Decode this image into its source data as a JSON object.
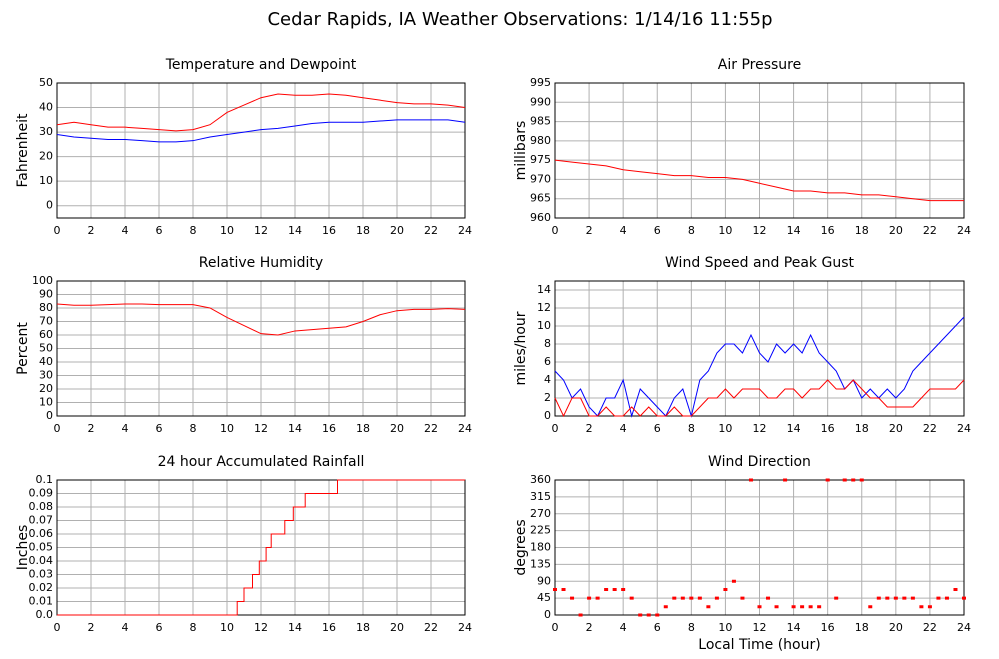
{
  "title": "Cedar Rapids, IA Weather Observations: 1/14/16 11:55p",
  "chart_data": [
    {
      "type": "line",
      "title": "Temperature and Dewpoint",
      "ylabel": "Fahrenheit",
      "x": [
        0,
        1,
        2,
        3,
        4,
        5,
        6,
        7,
        8,
        9,
        10,
        11,
        12,
        13,
        14,
        15,
        16,
        17,
        18,
        19,
        20,
        21,
        22,
        23,
        24
      ],
      "series": [
        {
          "color": "#ff0000",
          "values": [
            33,
            34,
            33,
            32,
            32,
            31.5,
            31,
            30.5,
            31,
            33,
            38,
            41,
            44,
            45.5,
            45,
            45,
            45.5,
            45,
            44,
            43,
            42,
            41.5,
            41.5,
            41,
            40
          ]
        },
        {
          "color": "#0000ff",
          "values": [
            29,
            28,
            27.5,
            27,
            27,
            26.5,
            26,
            26,
            26.5,
            28,
            29,
            30,
            31,
            31.5,
            32.5,
            33.5,
            34,
            34,
            34,
            34.5,
            35,
            35,
            35,
            35,
            34
          ]
        }
      ],
      "xlim": [
        0,
        24
      ],
      "xticks": [
        0,
        2,
        4,
        6,
        8,
        10,
        12,
        14,
        16,
        18,
        20,
        22,
        24
      ],
      "ylim": [
        -5,
        50
      ],
      "yticks": [
        0,
        10,
        20,
        30,
        40,
        50
      ],
      "grid": true
    },
    {
      "type": "line",
      "title": "Air Pressure",
      "ylabel": "millibars",
      "x": [
        0,
        1,
        2,
        3,
        4,
        5,
        6,
        7,
        8,
        9,
        10,
        11,
        12,
        13,
        14,
        15,
        16,
        17,
        18,
        19,
        20,
        21,
        22,
        23,
        24
      ],
      "series": [
        {
          "color": "#ff0000",
          "values": [
            975,
            974.5,
            974,
            973.5,
            972.5,
            972,
            971.5,
            971,
            971,
            970.5,
            970.5,
            970,
            969,
            968,
            967,
            967,
            966.5,
            966.5,
            966,
            966,
            965.5,
            965,
            964.5,
            964.5,
            964.5
          ]
        }
      ],
      "xlim": [
        0,
        24
      ],
      "xticks": [
        0,
        2,
        4,
        6,
        8,
        10,
        12,
        14,
        16,
        18,
        20,
        22,
        24
      ],
      "ylim": [
        960,
        995
      ],
      "yticks": [
        960,
        965,
        970,
        975,
        980,
        985,
        990,
        995
      ],
      "grid": true
    },
    {
      "type": "line",
      "title": "Relative Humidity",
      "ylabel": "Percent",
      "x": [
        0,
        1,
        2,
        3,
        4,
        5,
        6,
        7,
        8,
        9,
        10,
        11,
        12,
        13,
        14,
        15,
        16,
        17,
        18,
        19,
        20,
        21,
        22,
        23,
        24
      ],
      "series": [
        {
          "color": "#ff0000",
          "values": [
            83,
            82,
            82,
            82.5,
            83,
            83,
            82.5,
            82.5,
            82.5,
            80,
            73,
            67,
            61,
            60,
            63,
            64,
            65,
            66,
            70,
            75,
            78,
            79,
            79,
            79.5,
            79
          ]
        }
      ],
      "xlim": [
        0,
        24
      ],
      "xticks": [
        0,
        2,
        4,
        6,
        8,
        10,
        12,
        14,
        16,
        18,
        20,
        22,
        24
      ],
      "ylim": [
        0,
        100
      ],
      "yticks": [
        0,
        10,
        20,
        30,
        40,
        50,
        60,
        70,
        80,
        90,
        100
      ],
      "grid": true
    },
    {
      "type": "line",
      "title": "Wind Speed and Peak Gust",
      "ylabel": "miles/hour",
      "x": [
        0,
        0.5,
        1,
        1.5,
        2,
        2.5,
        3,
        3.5,
        4,
        4.5,
        5,
        5.5,
        6,
        6.5,
        7,
        7.5,
        8,
        8.5,
        9,
        9.5,
        10,
        10.5,
        11,
        11.5,
        12,
        12.5,
        13,
        13.5,
        14,
        14.5,
        15,
        15.5,
        16,
        16.5,
        17,
        17.5,
        18,
        18.5,
        19,
        19.5,
        20,
        20.5,
        21,
        21.5,
        22,
        22.5,
        23,
        23.5,
        24
      ],
      "series": [
        {
          "color": "#0000ff",
          "values": [
            5,
            4,
            2,
            3,
            1,
            0,
            2,
            2,
            4,
            0,
            3,
            2,
            1,
            0,
            2,
            3,
            0,
            4,
            5,
            7,
            8,
            8,
            7,
            9,
            7,
            6,
            8,
            7,
            8,
            7,
            9,
            7,
            6,
            5,
            3,
            4,
            2,
            3,
            2,
            3,
            2,
            3,
            5,
            6,
            7,
            8,
            9,
            10,
            11
          ]
        },
        {
          "color": "#ff0000",
          "values": [
            2,
            0,
            2,
            2,
            0,
            0,
            1,
            0,
            0,
            1,
            0,
            1,
            0,
            0,
            1,
            0,
            0,
            1,
            2,
            2,
            3,
            2,
            3,
            3,
            3,
            2,
            2,
            3,
            3,
            2,
            3,
            3,
            4,
            3,
            3,
            4,
            3,
            2,
            2,
            1,
            1,
            1,
            1,
            2,
            3,
            3,
            3,
            3,
            4
          ]
        }
      ],
      "xlim": [
        0,
        24
      ],
      "xticks": [
        0,
        2,
        4,
        6,
        8,
        10,
        12,
        14,
        16,
        18,
        20,
        22,
        24
      ],
      "ylim": [
        0,
        15
      ],
      "yticks": [
        0,
        2,
        4,
        6,
        8,
        10,
        12,
        14
      ],
      "grid": true
    },
    {
      "type": "step",
      "title": "24 hour Accumulated Rainfall",
      "ylabel": "Inches",
      "x": [
        0,
        10.6,
        11.0,
        11.5,
        11.9,
        12.3,
        12.6,
        13.4,
        13.9,
        14.6,
        16.5,
        24
      ],
      "series": [
        {
          "color": "#ff0000",
          "values": [
            0,
            0.01,
            0.02,
            0.03,
            0.04,
            0.05,
            0.06,
            0.07,
            0.08,
            0.09,
            0.1,
            0.1
          ]
        }
      ],
      "xlim": [
        0,
        24
      ],
      "xticks": [
        0,
        2,
        4,
        6,
        8,
        10,
        12,
        14,
        16,
        18,
        20,
        22,
        24
      ],
      "ylim": [
        0,
        0.1
      ],
      "yticks": [
        {
          "value": 0,
          "label": "0.0"
        },
        0.01,
        0.02,
        0.03,
        0.04,
        0.05,
        0.06,
        0.07,
        0.08,
        0.09,
        0.1
      ],
      "grid": true
    },
    {
      "type": "scatter",
      "title": "Wind Direction",
      "ylabel": "degrees",
      "xlabel": "Local Time (hour)",
      "x": [
        0,
        0.5,
        1,
        1.5,
        2,
        2.5,
        3,
        3.5,
        4,
        4.5,
        5,
        5.5,
        6,
        6.5,
        7,
        7.5,
        8,
        8.5,
        9,
        9.5,
        10,
        10.5,
        11,
        11.5,
        12,
        12.5,
        13,
        13.5,
        14,
        14.5,
        15,
        15.5,
        16,
        16.5,
        17,
        17.5,
        18,
        18.5,
        19,
        19.5,
        20,
        20.5,
        21,
        21.5,
        22,
        22.5,
        23,
        23.5,
        24
      ],
      "series": [
        {
          "color": "#ff0000",
          "values": [
            68,
            68,
            45,
            0,
            45,
            45,
            68,
            68,
            68,
            45,
            0,
            0,
            0,
            22,
            45,
            45,
            45,
            45,
            22,
            45,
            68,
            90,
            45,
            360,
            22,
            45,
            22,
            360,
            22,
            22,
            22,
            22,
            360,
            45,
            360,
            360,
            360,
            22,
            45,
            45,
            45,
            45,
            45,
            22,
            22,
            45,
            45,
            68,
            45
          ]
        }
      ],
      "xlim": [
        0,
        24
      ],
      "xticks": [
        0,
        2,
        4,
        6,
        8,
        10,
        12,
        14,
        16,
        18,
        20,
        22,
        24
      ],
      "ylim": [
        0,
        360
      ],
      "yticks": [
        0,
        45,
        90,
        135,
        180,
        225,
        270,
        315,
        360
      ],
      "grid": true
    }
  ]
}
